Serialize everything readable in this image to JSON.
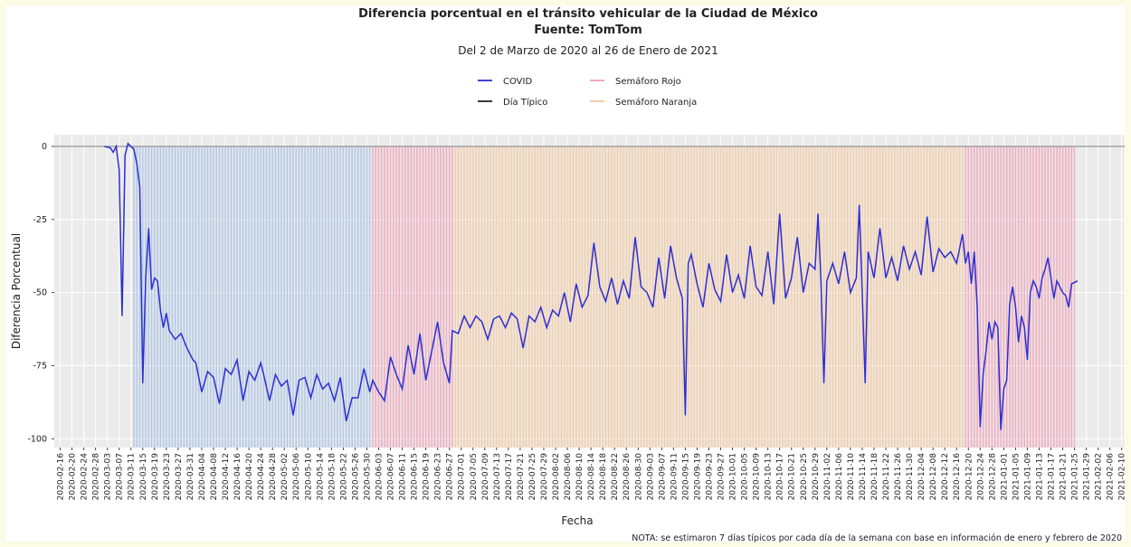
{
  "chart_data": {
    "type": "line",
    "title": "Diferencia porcentual en el tránsito vehicular de la Ciudad de México",
    "source": "Fuente: TomTom",
    "subtitle": "Del 2 de Marzo de 2020 al 26 de Enero de 2021",
    "x_label": "Fecha",
    "y_label": "Diferencia Porcentual",
    "note": "NOTA: se estimaron 7 días típicos por cada día de la semana con base en información de enero y febrero de 2020",
    "xlim": [
      "2020-02-14",
      "2021-02-11"
    ],
    "ylim": [
      -103,
      4
    ],
    "yticks": [
      0,
      -25,
      -50,
      -75,
      -100
    ],
    "grid": true,
    "xticks": [
      "2020-02-16",
      "2020-02-20",
      "2020-02-24",
      "2020-02-28",
      "2020-03-03",
      "2020-03-07",
      "2020-03-11",
      "2020-03-15",
      "2020-03-19",
      "2020-03-23",
      "2020-03-27",
      "2020-03-31",
      "2020-04-04",
      "2020-04-08",
      "2020-04-12",
      "2020-04-16",
      "2020-04-20",
      "2020-04-24",
      "2020-04-28",
      "2020-05-02",
      "2020-05-06",
      "2020-05-10",
      "2020-05-14",
      "2020-05-18",
      "2020-05-22",
      "2020-05-26",
      "2020-05-30",
      "2020-06-03",
      "2020-06-07",
      "2020-06-11",
      "2020-06-15",
      "2020-06-19",
      "2020-06-23",
      "2020-06-27",
      "2020-07-01",
      "2020-07-05",
      "2020-07-09",
      "2020-07-13",
      "2020-07-17",
      "2020-07-21",
      "2020-07-25",
      "2020-07-29",
      "2020-08-02",
      "2020-08-06",
      "2020-08-10",
      "2020-08-14",
      "2020-08-18",
      "2020-08-22",
      "2020-08-26",
      "2020-08-30",
      "2020-09-03",
      "2020-09-07",
      "2020-09-11",
      "2020-09-15",
      "2020-09-19",
      "2020-09-23",
      "2020-09-27",
      "2020-10-01",
      "2020-10-05",
      "2020-10-09",
      "2020-10-13",
      "2020-10-17",
      "2020-10-21",
      "2020-10-25",
      "2020-10-29",
      "2020-11-02",
      "2020-11-06",
      "2020-11-10",
      "2020-11-14",
      "2020-11-18",
      "2020-11-22",
      "2020-11-26",
      "2020-11-30",
      "2020-12-04",
      "2020-12-08",
      "2020-12-12",
      "2020-12-16",
      "2020-12-20",
      "2020-12-24",
      "2020-12-28",
      "2021-01-01",
      "2021-01-05",
      "2021-01-09",
      "2021-01-13",
      "2021-01-17",
      "2021-01-21",
      "2021-01-25",
      "2021-01-29",
      "2021-02-02",
      "2021-02-06",
      "2021-02-10"
    ],
    "x": [
      "2020-03-02",
      "2020-03-04",
      "2020-03-05",
      "2020-03-06",
      "2020-03-07",
      "2020-03-08",
      "2020-03-09",
      "2020-03-10",
      "2020-03-11",
      "2020-03-12",
      "2020-03-13",
      "2020-03-14",
      "2020-03-15",
      "2020-03-16",
      "2020-03-17",
      "2020-03-18",
      "2020-03-19",
      "2020-03-20",
      "2020-03-21",
      "2020-03-22",
      "2020-03-23",
      "2020-03-24",
      "2020-03-26",
      "2020-03-28",
      "2020-03-30",
      "2020-04-01",
      "2020-04-02",
      "2020-04-04",
      "2020-04-06",
      "2020-04-08",
      "2020-04-10",
      "2020-04-12",
      "2020-04-14",
      "2020-04-16",
      "2020-04-18",
      "2020-04-20",
      "2020-04-22",
      "2020-04-24",
      "2020-04-25",
      "2020-04-27",
      "2020-04-29",
      "2020-05-01",
      "2020-05-03",
      "2020-05-05",
      "2020-05-07",
      "2020-05-09",
      "2020-05-11",
      "2020-05-13",
      "2020-05-15",
      "2020-05-17",
      "2020-05-19",
      "2020-05-21",
      "2020-05-23",
      "2020-05-25",
      "2020-05-27",
      "2020-05-29",
      "2020-05-31",
      "2020-06-01",
      "2020-06-03",
      "2020-06-05",
      "2020-06-07",
      "2020-06-09",
      "2020-06-11",
      "2020-06-13",
      "2020-06-15",
      "2020-06-17",
      "2020-06-19",
      "2020-06-21",
      "2020-06-23",
      "2020-06-25",
      "2020-06-27",
      "2020-06-28",
      "2020-06-30",
      "2020-07-02",
      "2020-07-04",
      "2020-07-06",
      "2020-07-08",
      "2020-07-10",
      "2020-07-12",
      "2020-07-14",
      "2020-07-16",
      "2020-07-18",
      "2020-07-20",
      "2020-07-22",
      "2020-07-24",
      "2020-07-26",
      "2020-07-28",
      "2020-07-30",
      "2020-08-01",
      "2020-08-03",
      "2020-08-05",
      "2020-08-07",
      "2020-08-09",
      "2020-08-11",
      "2020-08-13",
      "2020-08-15",
      "2020-08-17",
      "2020-08-19",
      "2020-08-21",
      "2020-08-23",
      "2020-08-25",
      "2020-08-27",
      "2020-08-29",
      "2020-08-31",
      "2020-09-02",
      "2020-09-04",
      "2020-09-06",
      "2020-09-08",
      "2020-09-10",
      "2020-09-12",
      "2020-09-14",
      "2020-09-15",
      "2020-09-16",
      "2020-09-17",
      "2020-09-19",
      "2020-09-21",
      "2020-09-23",
      "2020-09-25",
      "2020-09-27",
      "2020-09-29",
      "2020-10-01",
      "2020-10-03",
      "2020-10-05",
      "2020-10-07",
      "2020-10-09",
      "2020-10-11",
      "2020-10-13",
      "2020-10-15",
      "2020-10-17",
      "2020-10-19",
      "2020-10-21",
      "2020-10-23",
      "2020-10-25",
      "2020-10-27",
      "2020-10-29",
      "2020-10-30",
      "2020-10-31",
      "2020-11-01",
      "2020-11-02",
      "2020-11-04",
      "2020-11-06",
      "2020-11-08",
      "2020-11-10",
      "2020-11-12",
      "2020-11-13",
      "2020-11-14",
      "2020-11-15",
      "2020-11-16",
      "2020-11-18",
      "2020-11-20",
      "2020-11-22",
      "2020-11-24",
      "2020-11-26",
      "2020-11-28",
      "2020-11-30",
      "2020-12-02",
      "2020-12-04",
      "2020-12-06",
      "2020-12-08",
      "2020-12-10",
      "2020-12-12",
      "2020-12-14",
      "2020-12-16",
      "2020-12-18",
      "2020-12-19",
      "2020-12-20",
      "2020-12-21",
      "2020-12-22",
      "2020-12-23",
      "2020-12-24",
      "2020-12-25",
      "2020-12-26",
      "2020-12-27",
      "2020-12-28",
      "2020-12-29",
      "2020-12-30",
      "2020-12-31",
      "2021-01-01",
      "2021-01-02",
      "2021-01-03",
      "2021-01-04",
      "2021-01-05",
      "2021-01-06",
      "2021-01-07",
      "2021-01-08",
      "2021-01-09",
      "2021-01-10",
      "2021-01-11",
      "2021-01-12",
      "2021-01-13",
      "2021-01-14",
      "2021-01-15",
      "2021-01-16",
      "2021-01-17",
      "2021-01-18",
      "2021-01-19",
      "2021-01-20",
      "2021-01-21",
      "2021-01-22",
      "2021-01-23",
      "2021-01-24",
      "2021-01-26"
    ],
    "series": [
      {
        "name": "COVID",
        "color": "#2e2ed2",
        "band": [
          "2020-03-12",
          "2020-05-31"
        ],
        "band_color": "#a8c2e4",
        "values": [
          0,
          -0.5,
          -2,
          0,
          -8,
          -58,
          -3,
          1,
          0,
          -1,
          -6,
          -14,
          -81,
          -45,
          -28,
          -49,
          -45,
          -46,
          -56,
          -62,
          -57,
          -63,
          -66,
          -64,
          -69,
          -73,
          -74,
          -84,
          -77,
          -79,
          -88,
          -76,
          -78,
          -73,
          -87,
          -77,
          -80,
          -74,
          -78,
          -87,
          -78,
          -82,
          -80,
          -92,
          -80,
          -79,
          -86,
          -78,
          -83,
          -81,
          -87,
          -79,
          -94,
          -86,
          -86,
          -76,
          -84,
          -80,
          -84,
          -87,
          -72,
          -78,
          -83,
          -68,
          -78,
          -64,
          -80,
          -70,
          -60,
          -74,
          -81,
          -63,
          -64,
          -58,
          -62,
          -58,
          -60,
          -66,
          -59,
          -58,
          -62,
          -57,
          -59,
          -69,
          -58,
          -60,
          -55,
          -62,
          -56,
          -58,
          -50,
          -60,
          -47,
          -55,
          -51,
          -33,
          -48,
          -53,
          -45,
          -54,
          -46,
          -52,
          -31,
          -48,
          -50,
          -55,
          -38,
          -52,
          -34,
          -45,
          -52,
          -92,
          -40,
          -37,
          -47,
          -55,
          -40,
          -49,
          -53,
          -37,
          -50,
          -44,
          -52,
          -34,
          -48,
          -51,
          -36,
          -54,
          -23,
          -52,
          -45,
          -31,
          -50,
          -40,
          -42,
          -23,
          -46,
          -81,
          -46,
          -40,
          -47,
          -36,
          -50,
          -45,
          -20,
          -50,
          -81,
          -36,
          -45,
          -28,
          -45,
          -38,
          -46,
          -34,
          -42,
          -36,
          -44,
          -24,
          -43,
          -35,
          -38,
          -36,
          -40,
          -30,
          -40,
          -36,
          -47,
          -36,
          -55,
          -96,
          -78,
          -70,
          -60,
          -66,
          -60,
          -62,
          -97,
          -83,
          -80,
          -54,
          -48,
          -55,
          -67,
          -58,
          -62,
          -73,
          -50,
          -46,
          -48,
          -52,
          -45,
          -42,
          -38,
          -45,
          -52,
          -46,
          -48,
          -50,
          -51,
          -55,
          -47,
          -46
        ]
      },
      {
        "name": "Día Típico",
        "color": "#8a8a8a",
        "x": [
          "2020-02-14",
          "2021-02-11"
        ],
        "values": [
          0,
          0
        ]
      }
    ],
    "bands": [
      {
        "name": "Semáforo Rojo",
        "color": "#f0a2b6",
        "ranges": [
          [
            "2020-06-01",
            "2020-06-28"
          ],
          [
            "2020-12-19",
            "2021-01-25"
          ]
        ]
      },
      {
        "name": "Semáforo Naranja",
        "color": "#f4c99c",
        "ranges": [
          [
            "2020-06-29",
            "2020-12-18"
          ]
        ]
      }
    ]
  }
}
